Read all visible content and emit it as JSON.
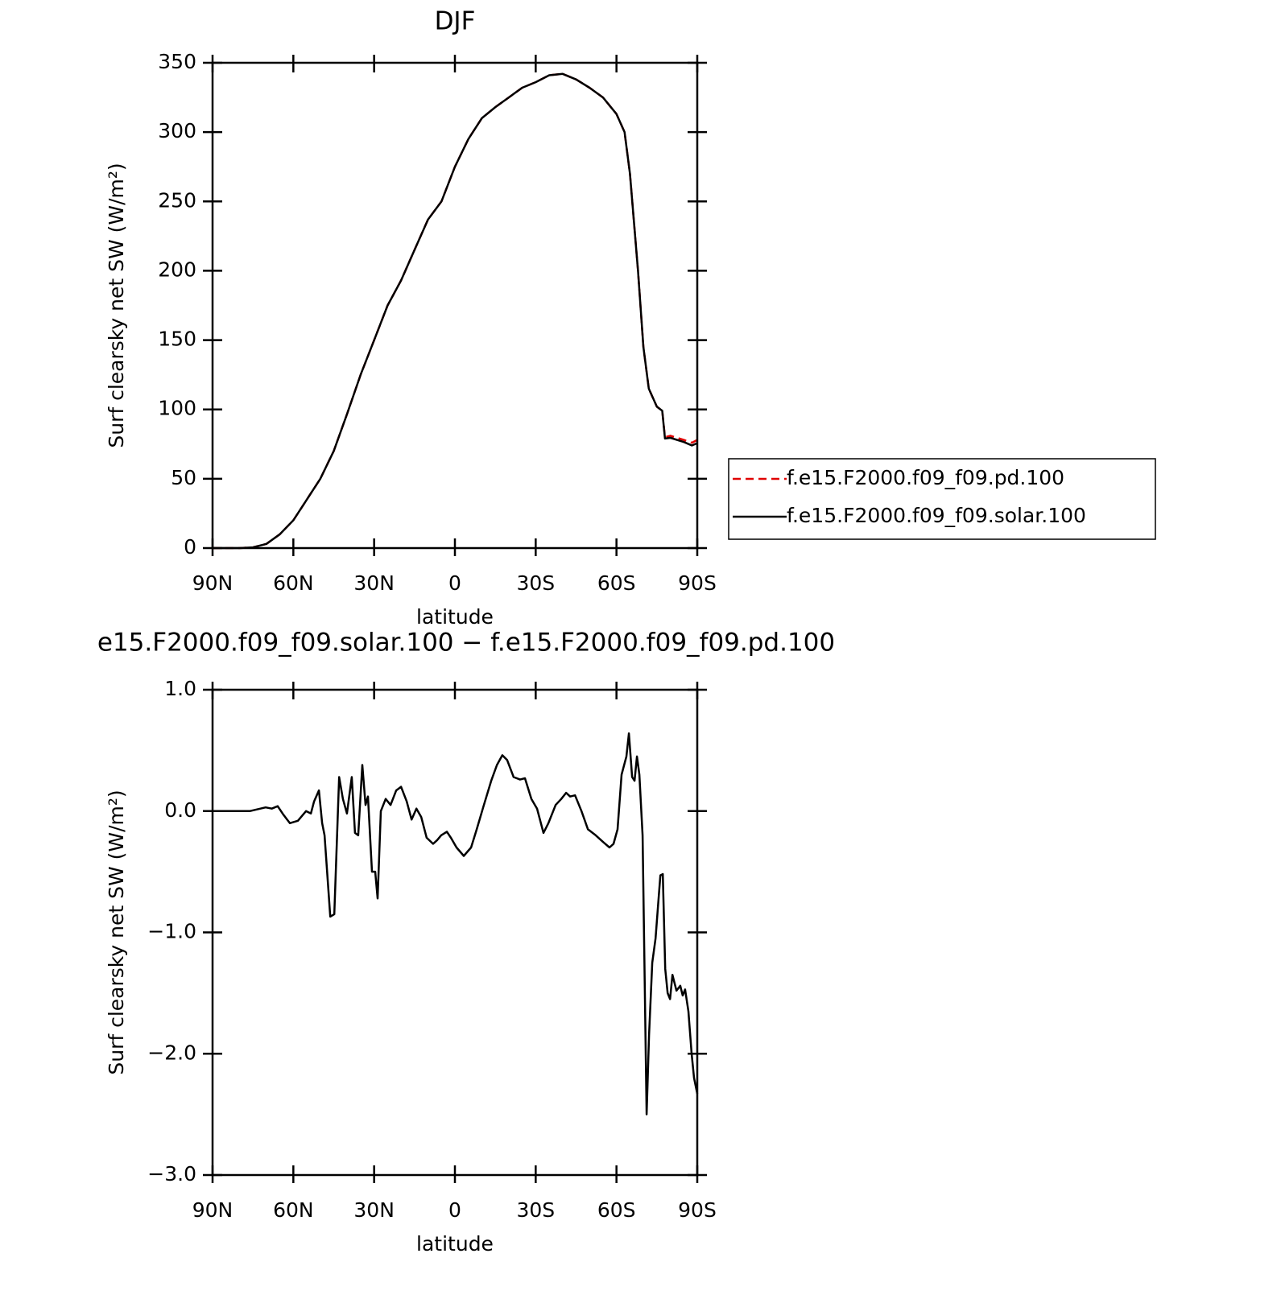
{
  "chart_data": [
    {
      "type": "line",
      "title": "DJF",
      "x_label": "latitude",
      "y_label": "Surf clearsky net SW (W/m²)",
      "x": [
        90,
        80,
        75,
        70,
        65,
        60,
        55,
        50,
        45,
        40,
        35,
        30,
        25,
        20,
        15,
        10,
        5,
        0,
        -5,
        -10,
        -15,
        -20,
        -25,
        -30,
        -35,
        -40,
        -45,
        -50,
        -55,
        -60,
        -63,
        -65,
        -68,
        -70,
        -72,
        -75,
        -77,
        -78,
        -80,
        -85,
        -88,
        -90
      ],
      "series": [
        {
          "name": "f.e15.F2000.f09_f09.pd.100",
          "color": "#e00000",
          "linestyle": "dashed",
          "values": [
            0,
            0,
            0.5,
            3,
            10,
            20,
            35,
            50,
            70,
            97,
            125,
            150,
            175,
            193,
            215,
            237,
            250,
            275,
            295,
            310,
            318,
            325,
            332,
            336,
            341,
            342,
            338,
            332,
            325,
            313,
            300,
            270,
            200,
            145,
            115,
            102,
            99,
            80,
            81,
            78,
            76,
            78
          ]
        },
        {
          "name": "f.e15.F2000.f09_f09.solar.100",
          "color": "#000000",
          "linestyle": "solid",
          "values": [
            0,
            0,
            0.5,
            3,
            10,
            20,
            35,
            50,
            70,
            97,
            125,
            150,
            175,
            193,
            215,
            237,
            250,
            275,
            295,
            310,
            318,
            325,
            332,
            336,
            341,
            342,
            338,
            332,
            325,
            313,
            300,
            270,
            200,
            145,
            115,
            102,
            99,
            79,
            79.5,
            76.5,
            74,
            75.7
          ]
        }
      ],
      "xlim": [
        90,
        -90
      ],
      "xticks": [
        {
          "value": 90,
          "label": "90N"
        },
        {
          "value": 60,
          "label": "60N"
        },
        {
          "value": 30,
          "label": "30N"
        },
        0,
        {
          "value": -30,
          "label": "30S"
        },
        {
          "value": -60,
          "label": "60S"
        },
        {
          "value": -90,
          "label": "90S"
        }
      ],
      "ylim": [
        0,
        350
      ],
      "yticks": [
        0,
        50,
        100,
        150,
        200,
        250,
        300,
        350
      ],
      "legend": "outside-right"
    },
    {
      "type": "line",
      "title": "e15.F2000.f09_f09.solar.100 − f.e15.F2000.f09_f09.pd.100",
      "x_label": "latitude",
      "y_label": "Surf clearsky net SW (W/m²)",
      "x": [
        90,
        76.2,
        70.3,
        68,
        65.8,
        63.7,
        61.3,
        58.3,
        55.3,
        53.5,
        52.3,
        50.5,
        49.3,
        48.4,
        46.3,
        44.8,
        43,
        41.6,
        40.1,
        38.3,
        37.1,
        35.9,
        34.4,
        33.2,
        32.3,
        30.8,
        29.6,
        28.7,
        27.5,
        25.7,
        23.9,
        21.8,
        20,
        17.9,
        16.1,
        14.3,
        12.5,
        10.5,
        8.1,
        6.6,
        5.1,
        3,
        1.5,
        -0.6,
        -3.3,
        -6,
        -8.1,
        -10.5,
        -13.5,
        -15.6,
        -17.6,
        -19.4,
        -21.8,
        -24.2,
        -26,
        -28.4,
        -30.5,
        -32.9,
        -34.7,
        -37.4,
        -39.5,
        -41.3,
        -42.8,
        -44.6,
        -47,
        -49.4,
        -52.3,
        -55.3,
        -57.4,
        -58.9,
        -60.4,
        -61.9,
        -63.7,
        -64.6,
        -65.8,
        -66.7,
        -67.6,
        -68.5,
        -69.7,
        -71.2,
        -72.1,
        -73.3,
        -74.5,
        -75.7,
        -76.3,
        -77.2,
        -78.1,
        -79,
        -79.9,
        -80.8,
        -82.3,
        -83.7,
        -84.6,
        -85.5,
        -86.7,
        -87.9,
        -88.8,
        -90
      ],
      "series": [
        {
          "name": "",
          "color": "#000000",
          "linestyle": "solid",
          "values": [
            0,
            0,
            0.03,
            0.02,
            0.04,
            -0.03,
            -0.1,
            -0.08,
            0,
            -0.02,
            0.08,
            0.17,
            -0.1,
            -0.2,
            -0.87,
            -0.85,
            0.28,
            0.1,
            -0.02,
            0.28,
            -0.18,
            -0.2,
            0.38,
            0.05,
            0.12,
            -0.5,
            -0.5,
            -0.72,
            0,
            0.1,
            0.05,
            0.17,
            0.2,
            0.08,
            -0.07,
            0.02,
            -0.05,
            -0.22,
            -0.27,
            -0.24,
            -0.2,
            -0.17,
            -0.22,
            -0.3,
            -0.37,
            -0.3,
            -0.15,
            0.03,
            0.25,
            0.38,
            0.46,
            0.42,
            0.28,
            0.26,
            0.27,
            0.1,
            0.02,
            -0.18,
            -0.1,
            0.05,
            0.1,
            0.15,
            0.12,
            0.13,
            0,
            -0.15,
            -0.2,
            -0.26,
            -0.3,
            -0.27,
            -0.15,
            0.3,
            0.45,
            0.64,
            0.28,
            0.25,
            0.45,
            0.3,
            -0.2,
            -2.5,
            -1.85,
            -1.25,
            -1.05,
            -0.7,
            -0.53,
            -0.52,
            -1.3,
            -1.5,
            -1.55,
            -1.35,
            -1.48,
            -1.44,
            -1.52,
            -1.47,
            -1.65,
            -2.0,
            -2.2,
            -2.33
          ]
        }
      ],
      "xlim": [
        90,
        -90
      ],
      "xticks": [
        {
          "value": 90,
          "label": "90N"
        },
        {
          "value": 60,
          "label": "60N"
        },
        {
          "value": 30,
          "label": "30N"
        },
        0,
        {
          "value": -30,
          "label": "30S"
        },
        {
          "value": -60,
          "label": "60S"
        },
        {
          "value": -90,
          "label": "90S"
        }
      ],
      "ylim": [
        -3,
        1
      ],
      "yticks": [
        {
          "value": -3,
          "label": "−3.0"
        },
        {
          "value": -2,
          "label": "−2.0"
        },
        {
          "value": -1,
          "label": "−1.0"
        },
        {
          "value": 0,
          "label": "0.0"
        },
        {
          "value": 1,
          "label": "1.0"
        }
      ]
    }
  ]
}
